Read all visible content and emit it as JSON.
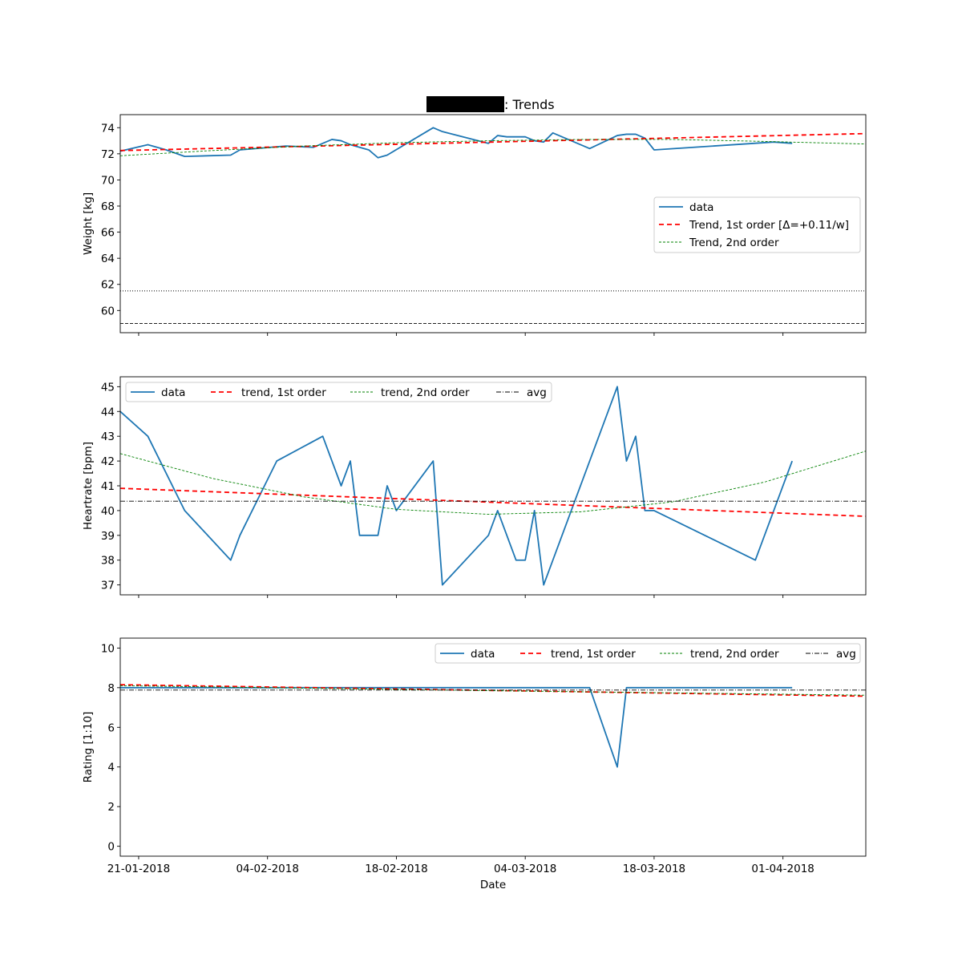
{
  "figure": {
    "title_suffix": ": Trends",
    "xlabel": "Date",
    "x_tick_labels": [
      "21-01-2018",
      "04-02-2018",
      "18-02-2018",
      "04-03-2018",
      "18-03-2018",
      "01-04-2018"
    ]
  },
  "colors": {
    "data": "#1f77b4",
    "trend1": "#ff0000",
    "trend2": "#008000",
    "avg": "#000000",
    "redaction": "#000000"
  },
  "chart_data": [
    {
      "type": "line",
      "name": "weight",
      "ylabel": "Weight [kg]",
      "xlim": [
        "2018-01-19",
        "2018-04-10"
      ],
      "ylim": [
        58.3,
        75.0
      ],
      "yticks": [
        60,
        62,
        64,
        66,
        68,
        70,
        72,
        74
      ],
      "legend": "center-right",
      "series": [
        {
          "name": "data",
          "role": "data",
          "points": [
            [
              "2018-01-19",
              72.2
            ],
            [
              "2018-01-22",
              72.7
            ],
            [
              "2018-01-24",
              72.3
            ],
            [
              "2018-01-26",
              71.8
            ],
            [
              "2018-01-31",
              71.9
            ],
            [
              "2018-02-01",
              72.3
            ],
            [
              "2018-02-06",
              72.6
            ],
            [
              "2018-02-09",
              72.5
            ],
            [
              "2018-02-11",
              73.1
            ],
            [
              "2018-02-12",
              73.0
            ],
            [
              "2018-02-13",
              72.7
            ],
            [
              "2018-02-15",
              72.3
            ],
            [
              "2018-02-16",
              71.7
            ],
            [
              "2018-02-17",
              71.9
            ],
            [
              "2018-02-22",
              74.0
            ],
            [
              "2018-02-23",
              73.7
            ],
            [
              "2018-02-28",
              72.8
            ],
            [
              "2018-03-01",
              73.4
            ],
            [
              "2018-03-02",
              73.3
            ],
            [
              "2018-03-04",
              73.3
            ],
            [
              "2018-03-05",
              73.0
            ],
            [
              "2018-03-06",
              72.9
            ],
            [
              "2018-03-07",
              73.6
            ],
            [
              "2018-03-11",
              72.4
            ],
            [
              "2018-03-14",
              73.4
            ],
            [
              "2018-03-15",
              73.5
            ],
            [
              "2018-03-16",
              73.5
            ],
            [
              "2018-03-17",
              73.2
            ],
            [
              "2018-03-18",
              72.3
            ],
            [
              "2018-03-31",
              72.9
            ],
            [
              "2018-04-02",
              72.8
            ]
          ]
        },
        {
          "name": "Trend, 1st order [Δ=+0.11/w]",
          "role": "trend1",
          "points": [
            [
              "2018-01-19",
              72.25
            ],
            [
              "2018-04-10",
              73.55
            ]
          ]
        },
        {
          "name": "Trend, 2nd order",
          "role": "trend2",
          "points": [
            [
              "2018-01-19",
              71.85
            ],
            [
              "2018-01-29",
              72.25
            ],
            [
              "2018-02-08",
              72.6
            ],
            [
              "2018-02-18",
              72.85
            ],
            [
              "2018-02-28",
              73.0
            ],
            [
              "2018-03-10",
              73.1
            ],
            [
              "2018-03-20",
              73.1
            ],
            [
              "2018-03-30",
              72.95
            ],
            [
              "2018-04-10",
              72.75
            ]
          ]
        }
      ],
      "hlines": [
        {
          "y": 61.5,
          "style": "dotted"
        },
        {
          "y": 59.0,
          "style": "dashed"
        }
      ]
    },
    {
      "type": "line",
      "name": "heartrate",
      "ylabel": "Heartrate [bpm]",
      "xlim": [
        "2018-01-19",
        "2018-04-10"
      ],
      "ylim": [
        36.6,
        45.4
      ],
      "yticks": [
        37,
        38,
        39,
        40,
        41,
        42,
        43,
        44,
        45
      ],
      "legend": "top-left",
      "series": [
        {
          "name": "data",
          "role": "data",
          "points": [
            [
              "2018-01-19",
              44
            ],
            [
              "2018-01-22",
              43
            ],
            [
              "2018-01-26",
              40
            ],
            [
              "2018-01-31",
              38
            ],
            [
              "2018-02-01",
              39
            ],
            [
              "2018-02-05",
              42
            ],
            [
              "2018-02-10",
              43
            ],
            [
              "2018-02-12",
              41
            ],
            [
              "2018-02-13",
              42
            ],
            [
              "2018-02-14",
              39
            ],
            [
              "2018-02-16",
              39
            ],
            [
              "2018-02-17",
              41
            ],
            [
              "2018-02-18",
              40
            ],
            [
              "2018-02-22",
              42
            ],
            [
              "2018-02-23",
              37
            ],
            [
              "2018-02-28",
              39
            ],
            [
              "2018-03-01",
              40
            ],
            [
              "2018-03-03",
              38
            ],
            [
              "2018-03-04",
              38
            ],
            [
              "2018-03-05",
              40
            ],
            [
              "2018-03-06",
              37
            ],
            [
              "2018-03-14",
              45
            ],
            [
              "2018-03-15",
              42
            ],
            [
              "2018-03-16",
              43
            ],
            [
              "2018-03-17",
              40
            ],
            [
              "2018-03-18",
              40
            ],
            [
              "2018-03-29",
              38
            ],
            [
              "2018-04-02",
              42
            ]
          ]
        },
        {
          "name": "trend, 1st order",
          "role": "trend1",
          "points": [
            [
              "2018-01-19",
              40.9
            ],
            [
              "2018-04-10",
              39.77
            ]
          ]
        },
        {
          "name": "trend, 2nd order",
          "role": "trend2",
          "points": [
            [
              "2018-01-19",
              42.3
            ],
            [
              "2018-01-29",
              41.3
            ],
            [
              "2018-02-08",
              40.55
            ],
            [
              "2018-02-18",
              40.05
            ],
            [
              "2018-02-28",
              39.85
            ],
            [
              "2018-03-10",
              39.95
            ],
            [
              "2018-03-20",
              40.35
            ],
            [
              "2018-03-30",
              41.15
            ],
            [
              "2018-04-10",
              42.4
            ]
          ]
        },
        {
          "name": "avg",
          "role": "avg",
          "points": [
            [
              "2018-01-19",
              40.38
            ],
            [
              "2018-04-10",
              40.38
            ]
          ]
        }
      ]
    },
    {
      "type": "line",
      "name": "rating",
      "ylabel": "Rating [1:10]",
      "xlim": [
        "2018-01-19",
        "2018-04-10"
      ],
      "ylim": [
        -0.5,
        10.5
      ],
      "yticks": [
        0,
        2,
        4,
        6,
        8,
        10
      ],
      "legend": "top-right",
      "series": [
        {
          "name": "data",
          "role": "data",
          "points": [
            [
              "2018-01-19",
              8
            ],
            [
              "2018-03-11",
              8
            ],
            [
              "2018-03-14",
              4
            ],
            [
              "2018-03-15",
              8
            ],
            [
              "2018-04-02",
              8
            ]
          ]
        },
        {
          "name": "trend, 1st order",
          "role": "trend1",
          "points": [
            [
              "2018-01-19",
              8.15
            ],
            [
              "2018-04-10",
              7.57
            ]
          ]
        },
        {
          "name": "trend, 2nd order",
          "role": "trend2",
          "points": [
            [
              "2018-01-19",
              8.1
            ],
            [
              "2018-02-28",
              7.85
            ],
            [
              "2018-04-10",
              7.62
            ]
          ]
        },
        {
          "name": "avg",
          "role": "avg",
          "points": [
            [
              "2018-01-19",
              7.88
            ],
            [
              "2018-04-10",
              7.88
            ]
          ]
        }
      ]
    }
  ]
}
